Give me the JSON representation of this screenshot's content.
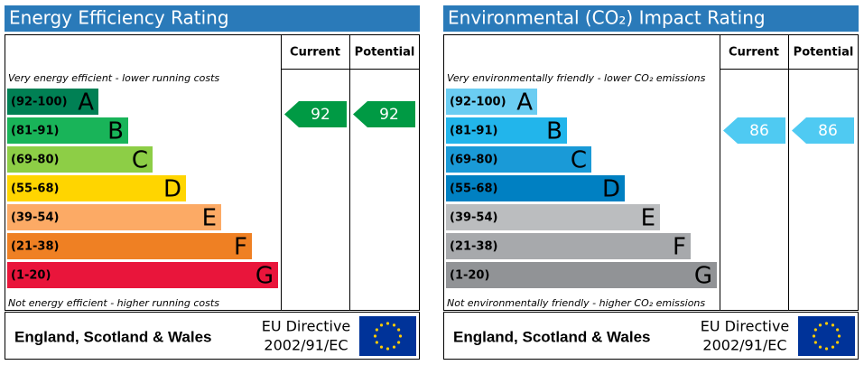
{
  "panels": [
    {
      "title": "Energy Efficiency Rating",
      "current_label": "Current",
      "potential_label": "Potential",
      "top_note": "Very energy efficient - lower running costs",
      "bottom_note": "Not energy efficient - higher running costs",
      "bands": [
        {
          "range": "(92-100)",
          "letter": "A",
          "color": "#008054"
        },
        {
          "range": "(81-91)",
          "letter": "B",
          "color": "#19b459"
        },
        {
          "range": "(69-80)",
          "letter": "C",
          "color": "#8dce46"
        },
        {
          "range": "(55-68)",
          "letter": "D",
          "color": "#ffd500"
        },
        {
          "range": "(39-54)",
          "letter": "E",
          "color": "#fcaa65"
        },
        {
          "range": "(21-38)",
          "letter": "F",
          "color": "#ef8023"
        },
        {
          "range": "(1-20)",
          "letter": "G",
          "color": "#e9153b"
        }
      ],
      "current": 92,
      "potential": 92,
      "arrow_color": "#009a44",
      "region": "England, Scotland & Wales",
      "directive": "EU Directive",
      "directive_code": "2002/91/EC"
    },
    {
      "title": "Environmental (CO₂) Impact Rating",
      "current_label": "Current",
      "potential_label": "Potential",
      "top_note": "Very environmentally friendly - lower CO₂ emissions",
      "bottom_note": "Not environmentally friendly - higher CO₂ emissions",
      "bands": [
        {
          "range": "(92-100)",
          "letter": "A",
          "color": "#6bcdf2"
        },
        {
          "range": "(81-91)",
          "letter": "B",
          "color": "#22b5eb"
        },
        {
          "range": "(69-80)",
          "letter": "C",
          "color": "#1a9ad7"
        },
        {
          "range": "(55-68)",
          "letter": "D",
          "color": "#0080c2"
        },
        {
          "range": "(39-54)",
          "letter": "E",
          "color": "#bbbdbf"
        },
        {
          "range": "(21-38)",
          "letter": "F",
          "color": "#a7a9ac"
        },
        {
          "range": "(1-20)",
          "letter": "G",
          "color": "#919396"
        }
      ],
      "current": 86,
      "potential": 86,
      "arrow_color": "#4fcaf2",
      "region": "England, Scotland & Wales",
      "directive": "EU Directive",
      "directive_code": "2002/91/EC"
    }
  ]
}
